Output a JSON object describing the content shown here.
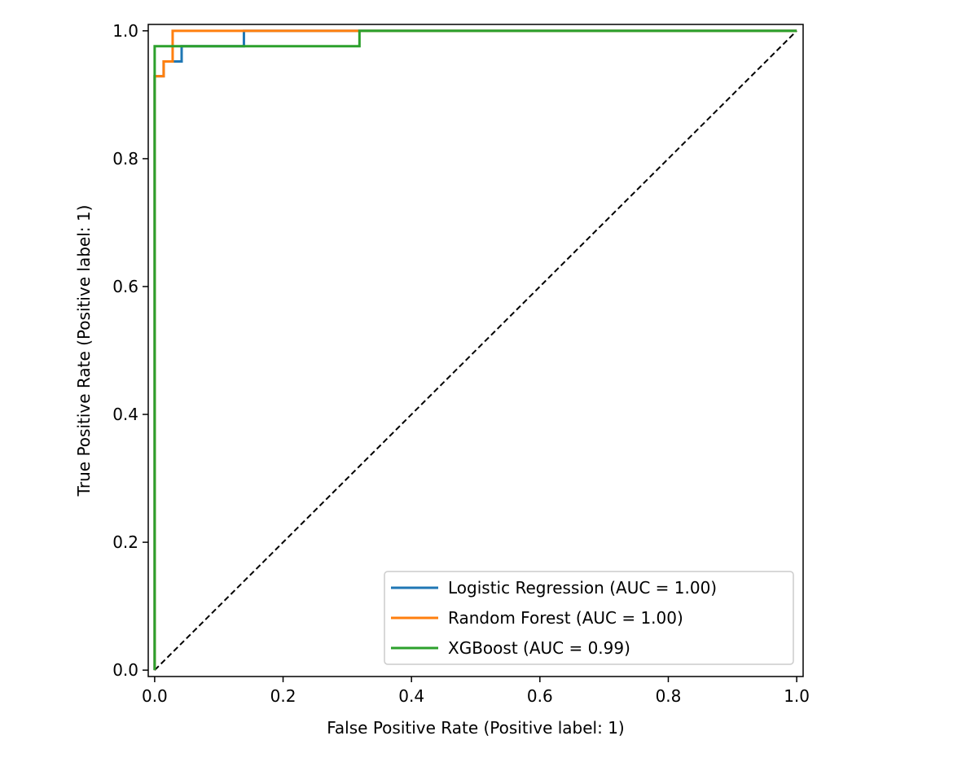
{
  "chart_data": {
    "type": "line",
    "title": "",
    "xlabel": "False Positive Rate (Positive label: 1)",
    "ylabel": "True Positive Rate (Positive label: 1)",
    "xlim": [
      -0.01,
      1.01
    ],
    "ylim": [
      -0.01,
      1.01
    ],
    "xticks": [
      "0.0",
      "0.2",
      "0.4",
      "0.6",
      "0.8",
      "1.0"
    ],
    "yticks": [
      "0.0",
      "0.2",
      "0.4",
      "0.6",
      "0.8",
      "1.0"
    ],
    "xtick_values": [
      0,
      0.2,
      0.4,
      0.6,
      0.8,
      1.0
    ],
    "ytick_values": [
      0,
      0.2,
      0.4,
      0.6,
      0.8,
      1.0
    ],
    "grid": false,
    "legend_position": "lower-right",
    "diagonal_reference": {
      "x": [
        0,
        1
      ],
      "y": [
        0,
        1
      ],
      "color": "#000000",
      "style": "dashed"
    },
    "series": [
      {
        "name": "Logistic Regression (AUC = 1.00)",
        "color": "#1f77b4",
        "x": [
          0,
          0,
          0.014,
          0.014,
          0.028,
          0.028,
          0.042,
          0.042,
          0.139,
          0.139,
          1.0
        ],
        "y": [
          0,
          0.929,
          0.929,
          0.952,
          0.952,
          0.952,
          0.952,
          0.976,
          0.976,
          1.0,
          1.0
        ]
      },
      {
        "name": "Random Forest (AUC = 1.00)",
        "color": "#ff7f0e",
        "x": [
          0,
          0,
          0.014,
          0.014,
          0.028,
          0.028,
          1.0
        ],
        "y": [
          0,
          0.929,
          0.929,
          0.952,
          0.952,
          1.0,
          1.0
        ]
      },
      {
        "name": "XGBoost (AUC = 0.99)",
        "color": "#2ca02c",
        "x": [
          0,
          0,
          0.319,
          0.319,
          1.0
        ],
        "y": [
          0,
          0.976,
          0.976,
          1.0,
          1.0
        ]
      }
    ]
  }
}
